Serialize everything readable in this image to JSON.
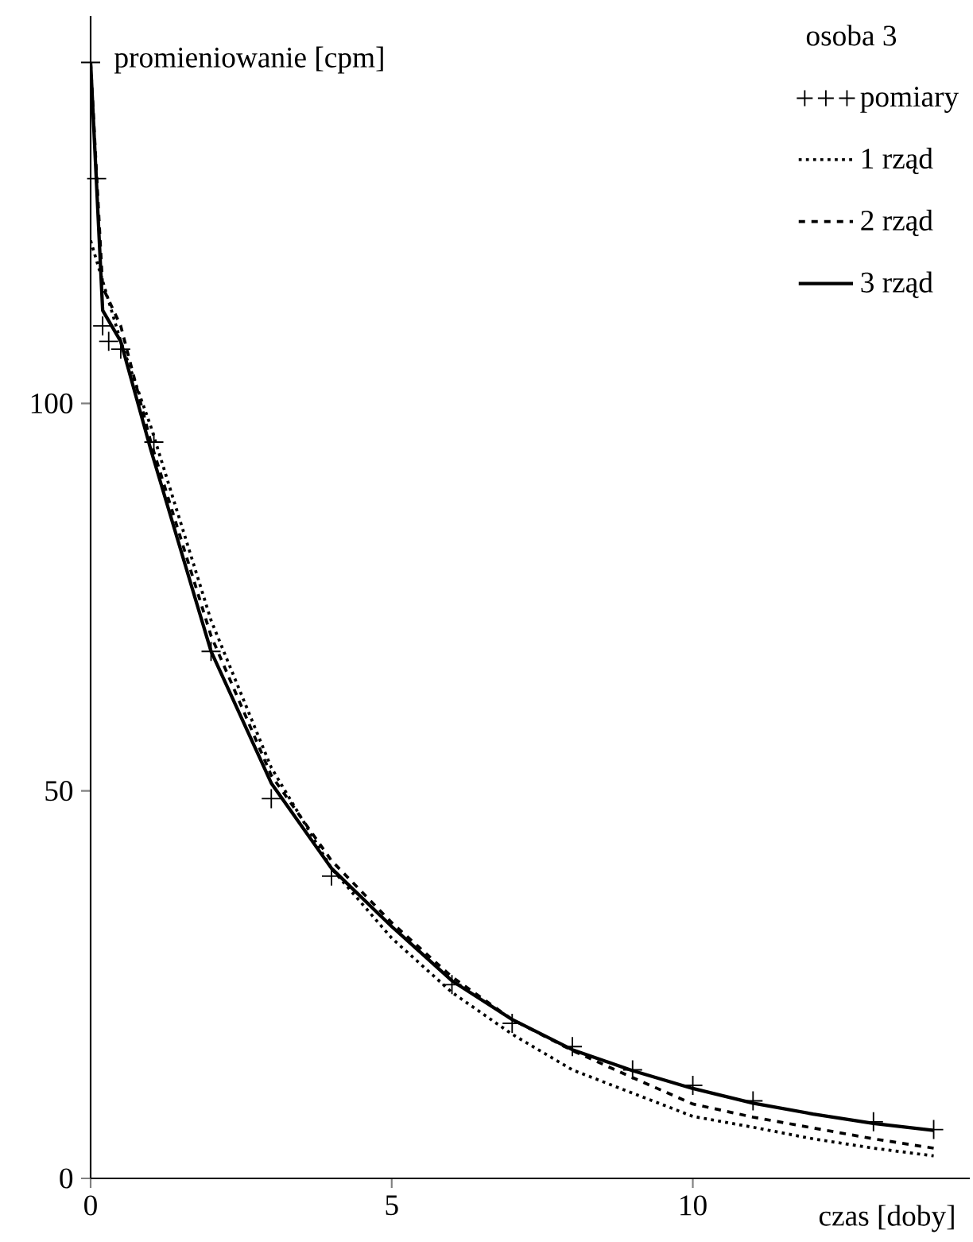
{
  "chart_data": {
    "type": "line",
    "legend_title": "osoba 3",
    "xlabel": "czas [doby]",
    "ylabel": "promieniowanie [cpm]",
    "xlim": [
      0,
      14.6
    ],
    "ylim": [
      0,
      150
    ],
    "xticks": [
      0,
      5,
      10
    ],
    "yticks": [
      0,
      50,
      100
    ],
    "legend": "top right",
    "series": [
      {
        "name": "pomiary",
        "type": "scatter",
        "marker": "cross",
        "color": "#000000",
        "x": [
          0,
          0.1,
          0.2,
          0.3,
          0.5,
          1.05,
          2.0,
          3.0,
          4.0,
          6.0,
          7.0,
          8.0,
          9.0,
          10.0,
          11.0,
          13.0,
          14.0
        ],
        "values": [
          144,
          129,
          110,
          108,
          107,
          95,
          68,
          49,
          39,
          25,
          20,
          17,
          14,
          12,
          10,
          7.3,
          6.3
        ]
      },
      {
        "name": "1 rząd",
        "type": "line",
        "line_style": "dotted",
        "color": "#000000",
        "x": [
          0,
          0.5,
          1,
          2,
          3,
          4,
          5,
          6,
          7,
          8,
          9,
          10,
          11,
          12,
          13,
          14
        ],
        "values": [
          121,
          108,
          97,
          72,
          53,
          40,
          31,
          24,
          18.6,
          14,
          11,
          8,
          6.6,
          5.1,
          3.9,
          2.9
        ]
      },
      {
        "name": "2 rząd",
        "type": "line",
        "line_style": "dashed",
        "color": "#000000",
        "x": [
          0,
          0.2,
          0.5,
          1,
          2,
          3,
          4,
          5,
          6,
          7,
          8,
          9,
          10,
          11,
          12,
          13,
          14
        ],
        "values": [
          144,
          115,
          110,
          95,
          70,
          52,
          41,
          33,
          26,
          20.5,
          16.5,
          13,
          9.6,
          7.9,
          6.5,
          5.1,
          3.9
        ]
      },
      {
        "name": "3 rząd",
        "type": "line",
        "line_style": "solid",
        "color": "#000000",
        "x": [
          0,
          0.2,
          0.5,
          1,
          2,
          3,
          4,
          5,
          6,
          7,
          8,
          9,
          10,
          11,
          12,
          13,
          14
        ],
        "values": [
          144,
          112,
          108,
          94,
          68,
          51,
          40,
          32.5,
          25.5,
          20.5,
          16.6,
          13.9,
          11.6,
          9.7,
          8.3,
          7.1,
          6.2
        ]
      }
    ]
  }
}
